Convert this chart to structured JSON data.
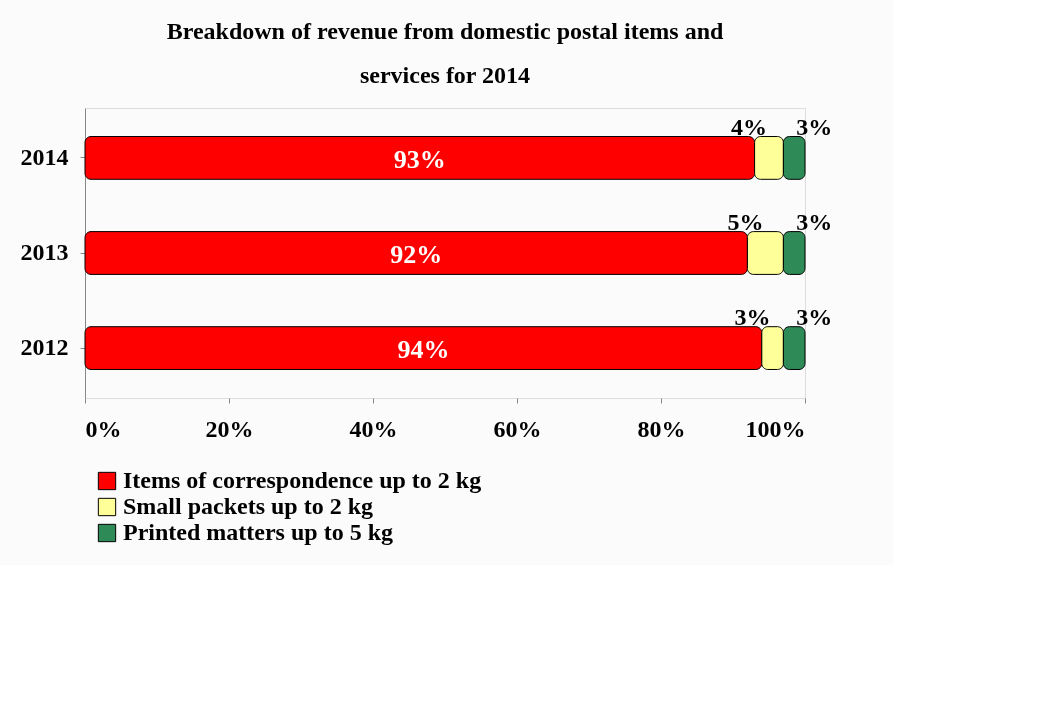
{
  "chart_data": {
    "type": "bar",
    "orientation": "horizontal",
    "stacked": true,
    "title": "Breakdown of revenue from domestic postal items and services for 2014",
    "categories": [
      "2014",
      "2013",
      "2012"
    ],
    "series": [
      {
        "name": "Items of correspondence up to 2 kg",
        "color": "#ff0000",
        "values": [
          93,
          92,
          94
        ],
        "value_labels": [
          "93%",
          "92%",
          "94%"
        ]
      },
      {
        "name": "Small packets up to 2 kg",
        "color": "#ffff99",
        "values": [
          4,
          5,
          3
        ],
        "value_labels": [
          "4%",
          "5%",
          "3%"
        ]
      },
      {
        "name": "Printed matters up to 5 kg",
        "color": "#2e8b57",
        "values": [
          3,
          3,
          3
        ],
        "value_labels": [
          "3%",
          "3%",
          "3%"
        ]
      }
    ],
    "xlim": [
      0,
      100
    ],
    "xticks": [
      {
        "value": 0,
        "label": "0%"
      },
      {
        "value": 20,
        "label": "20%"
      },
      {
        "value": 40,
        "label": "40%"
      },
      {
        "value": 60,
        "label": "60%"
      },
      {
        "value": 80,
        "label": "80%"
      },
      {
        "value": 100,
        "label": "100%"
      }
    ],
    "legend": "bottom"
  }
}
